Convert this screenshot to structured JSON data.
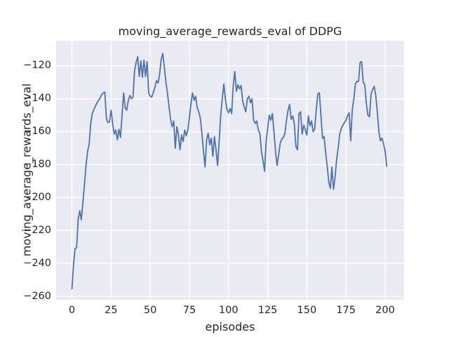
{
  "figure": {
    "title": "moving_average_rewards_eval of DDPG",
    "xlabel": "episodes",
    "ylabel": "moving_average_rewards_eval"
  },
  "chart_data": {
    "type": "line",
    "title": "moving_average_rewards_eval of DDPG",
    "xlabel": "episodes",
    "ylabel": "moving_average_rewards_eval",
    "x_start": 0,
    "x_step": 1,
    "values": [
      -255.5,
      -241,
      -231,
      -230.5,
      -213,
      -208,
      -213.5,
      -203,
      -192,
      -180.5,
      -172,
      -167.5,
      -155,
      -149,
      -146.5,
      -144.5,
      -142.5,
      -141,
      -139.5,
      -137.5,
      -136.5,
      -136,
      -152,
      -154.5,
      -154,
      -147,
      -155,
      -161.5,
      -159,
      -165,
      -158.5,
      -163.5,
      -150,
      -136.5,
      -145.5,
      -147,
      -141,
      -138,
      -140,
      -139,
      -123,
      -118,
      -114.5,
      -126.5,
      -117,
      -127,
      -116.5,
      -126.5,
      -117.5,
      -136.5,
      -138.5,
      -139,
      -136,
      -133,
      -129,
      -130.5,
      -125,
      -116,
      -112.5,
      -121,
      -130,
      -136.5,
      -145,
      -152.5,
      -157,
      -153.5,
      -170,
      -157,
      -162,
      -171,
      -162,
      -166,
      -159,
      -162.5,
      -159,
      -151.5,
      -143,
      -136.5,
      -141,
      -138.5,
      -145.5,
      -148,
      -152,
      -161,
      -172,
      -181.5,
      -165,
      -161,
      -168,
      -164,
      -175,
      -163,
      -171,
      -180.5,
      -166,
      -150,
      -140,
      -131,
      -140.5,
      -146.5,
      -148.5,
      -146,
      -149,
      -132,
      -123.5,
      -135.5,
      -131.5,
      -134,
      -132,
      -141.5,
      -145,
      -148,
      -140,
      -138.5,
      -142.5,
      -140,
      -153,
      -155,
      -153.5,
      -159,
      -161,
      -172,
      -177.5,
      -184,
      -166,
      -158,
      -150,
      -153,
      -149,
      -160,
      -172,
      -180.5,
      -174,
      -167,
      -164.5,
      -163.5,
      -161,
      -153,
      -147,
      -143.5,
      -152.5,
      -150.5,
      -155,
      -169,
      -171,
      -149,
      -148,
      -161.5,
      -156,
      -159,
      -162,
      -150.5,
      -156.5,
      -153.5,
      -160,
      -158.5,
      -147,
      -137,
      -136.5,
      -150,
      -164,
      -163,
      -172.5,
      -181,
      -190.5,
      -194.5,
      -181.5,
      -195,
      -188,
      -177,
      -170,
      -161.5,
      -158,
      -156,
      -154.5,
      -153,
      -150.5,
      -148.5,
      -165.5,
      -147,
      -140,
      -131,
      -129.5,
      -129.5,
      -118,
      -117.5,
      -130,
      -131.5,
      -143,
      -150,
      -151,
      -137,
      -134.5,
      -132.5,
      -138,
      -148,
      -160,
      -165.5,
      -164,
      -167.5,
      -172,
      -181
    ],
    "x_ticks": [
      0,
      25,
      50,
      75,
      100,
      125,
      150,
      175,
      200
    ],
    "y_ticks": [
      -120,
      -140,
      -160,
      -180,
      -200,
      -220,
      -240,
      -260
    ],
    "xlim": [
      -10.1,
      212.1
    ],
    "ylim": [
      -262.3,
      -104.8
    ],
    "grid": true,
    "legend_position": "none",
    "line_color": "#4c72b0",
    "plot_background_color": "#eaeaf2",
    "grid_color": "#ffffff",
    "text_color": "#262626"
  }
}
